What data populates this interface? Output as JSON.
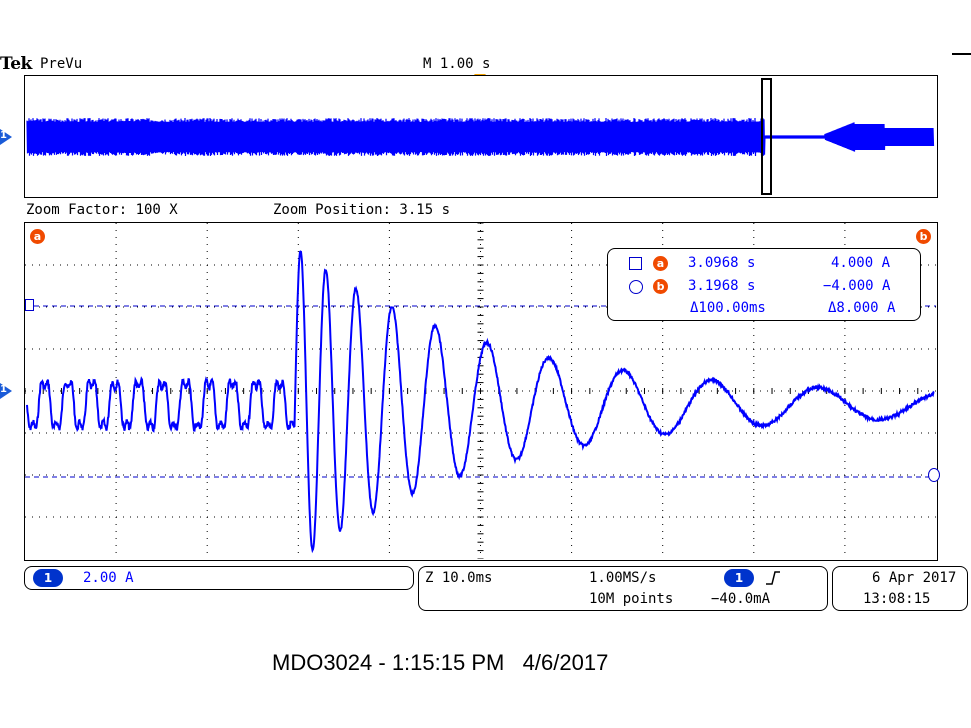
{
  "brand": "Tek",
  "mode": "PreVu",
  "timebase": "M 1.00 s",
  "zoom_factor": "Zoom Factor: 100 X",
  "zoom_position": "Zoom Position: 3.15 s",
  "channel_number": "1",
  "cursors": {
    "a_label": "a",
    "b_label": "b",
    "a_time": "3.0968 s",
    "a_value": "4.000 A",
    "b_time": "3.1968 s",
    "b_value": "−4.000 A",
    "delta_time": "Δ100.00ms",
    "delta_value": "Δ8.000 A"
  },
  "status_bar": {
    "channel_scale": "2.00 A",
    "zoom_scale": "Z 10.0ms",
    "sample_rate": "1.00MS/s",
    "record_length": "10M points",
    "trigger_level": "−40.0mA",
    "date": "6 Apr  2017",
    "time": "13:08:15"
  },
  "caption": "MDO3024 - 1:15:15 PM   4/6/2017",
  "colors": {
    "trace": "#0000ff",
    "cursor_badge": "#f04a00",
    "channel_badge": "#0033cc",
    "cursor_line": "#0000cc"
  }
}
